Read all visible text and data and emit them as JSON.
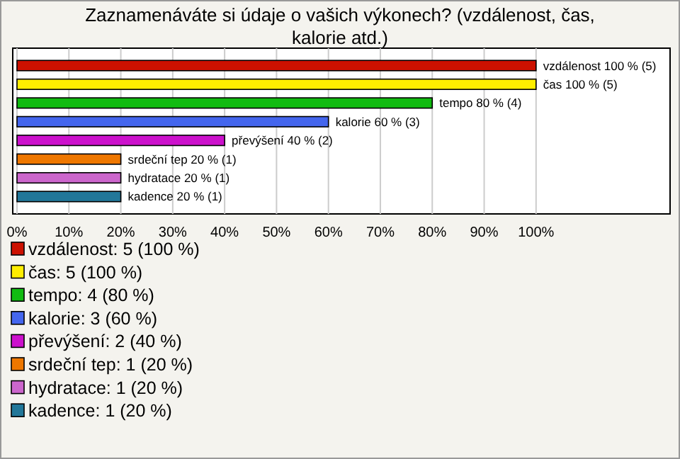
{
  "chart_data": {
    "type": "bar",
    "orientation": "horizontal",
    "title": "Zaznamenáváte si údaje o vašich výkonech? (vzdálenost, čas, kalorie atd.)",
    "categories": [
      "vzdálenost",
      "čas",
      "tempo",
      "kalorie",
      "převýšení",
      "srdeční tep",
      "hydratace",
      "kadence"
    ],
    "values": [
      100,
      100,
      80,
      60,
      40,
      20,
      20,
      20
    ],
    "value_labels": [
      "100 % (5)",
      "100 % (5)",
      "80 % (4)",
      "60 % (3)",
      "40 % (2)",
      "20 % (1)",
      "20 % (1)",
      "20 % (1)"
    ],
    "colors": [
      "#cc1100",
      "#ffee00",
      "#11bb11",
      "#4466ee",
      "#cc11cc",
      "#ee7700",
      "#cc66cc",
      "#227799"
    ],
    "xlim": [
      0,
      125
    ],
    "xticks": [
      {
        "value": 0,
        "label": "0%"
      },
      {
        "value": 10,
        "label": "10%"
      },
      {
        "value": 20,
        "label": "20%"
      },
      {
        "value": 30,
        "label": "30%"
      },
      {
        "value": 40,
        "label": "40%"
      },
      {
        "value": 50,
        "label": "50%"
      },
      {
        "value": 60,
        "label": "60%"
      },
      {
        "value": 70,
        "label": "70%"
      },
      {
        "value": 80,
        "label": "80%"
      },
      {
        "value": 90,
        "label": "90%"
      },
      {
        "value": 100,
        "label": "100%"
      }
    ],
    "grid": "x",
    "annotations": [
      "vzdálenost: 5 (100 %)",
      "čas: 5 (100 %)",
      "tempo: 4 (80 %)",
      "kalorie: 3 (60 %)",
      "převýšení: 2 (40 %)",
      "srdeční tep: 1 (20 %)",
      "hydratace: 1 (20 %)",
      "kadence: 1 (20 %)"
    ]
  }
}
